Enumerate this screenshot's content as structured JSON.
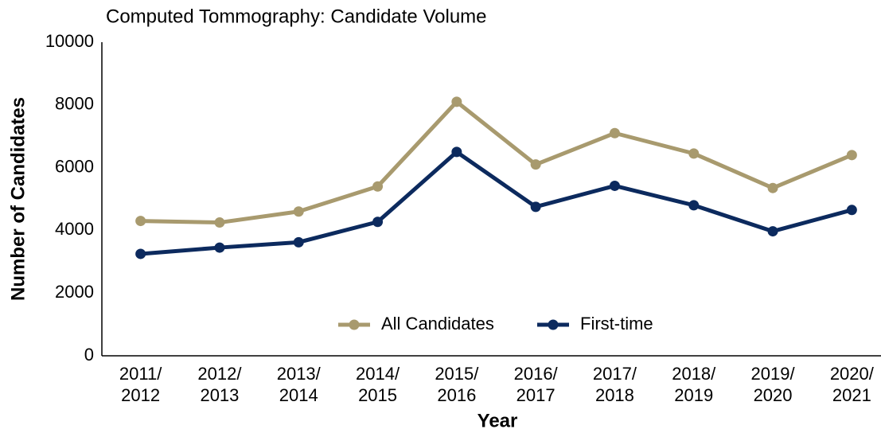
{
  "chart_data": {
    "type": "line",
    "title": "Computed Tommography: Candidate Volume",
    "x_label": "Year",
    "y_label": "Number of Candidates",
    "categories": [
      "2011/\n2012",
      "2012/\n2013",
      "2013/\n2014",
      "2014/\n2015",
      "2015/\n2016",
      "2016/\n2017",
      "2017/\n2018",
      "2018/\n2019",
      "2019/\n2020",
      "2020/\n2021"
    ],
    "series": [
      {
        "name": "All Candidates",
        "color": "#a89a6e",
        "values": [
          4300,
          4250,
          4600,
          5400,
          8100,
          6100,
          7100,
          6450,
          5350,
          6400
        ]
      },
      {
        "name": "First-time",
        "color": "#0c2a5e",
        "values": [
          3250,
          3450,
          3620,
          4270,
          6500,
          4750,
          5420,
          4800,
          3970,
          4650
        ]
      }
    ],
    "ylim": [
      0,
      10000
    ],
    "yticks": [
      0,
      2000,
      4000,
      6000,
      8000,
      10000
    ],
    "grid": false,
    "legend": "bottom"
  }
}
